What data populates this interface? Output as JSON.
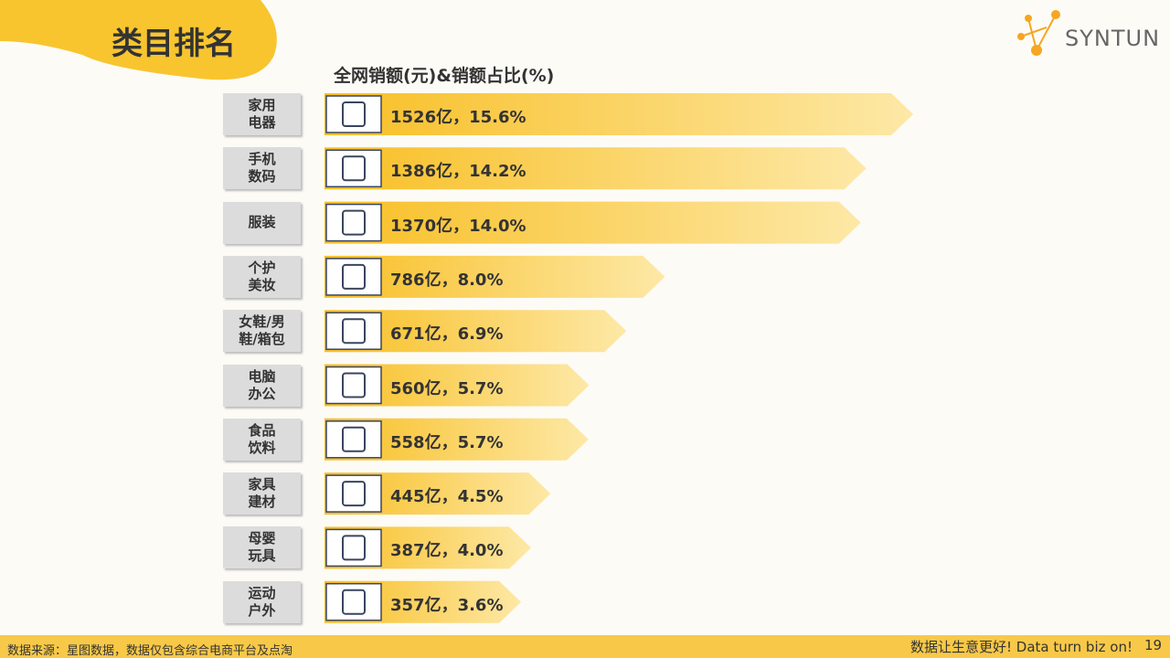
{
  "header": {
    "title": "类目排名",
    "logo": "SYNTUN"
  },
  "footer": {
    "source": "数据来源：星图数据，数据仅包含综合电商平台及点淘",
    "slogan": "数据让生意更好! Data turn biz on!",
    "page": "19"
  },
  "chart_data": {
    "type": "bar",
    "title": "全网销额(元)&销额占比(%)",
    "categories": [
      "家用\n电器",
      "手机\n数码",
      "服装",
      "个护\n美妆",
      "女鞋/男\n鞋/箱包",
      "电脑\n办公",
      "食品\n饮料",
      "家具\n建材",
      "母婴\n玩具",
      "运动\n户外"
    ],
    "values": [
      1526,
      1386,
      1370,
      786,
      671,
      560,
      558,
      445,
      387,
      357
    ],
    "shares": [
      15.6,
      14.2,
      14.0,
      8.0,
      6.9,
      5.7,
      5.7,
      4.5,
      4.0,
      3.6
    ],
    "value_labels": [
      "1526亿，15.6%",
      "1386亿，14.2%",
      "1370亿，14.0%",
      "786亿，8.0%",
      "671亿，6.9%",
      "560亿，5.7%",
      "558亿，5.7%",
      "445亿，4.5%",
      "387亿，4.0%",
      "357亿，3.6%"
    ],
    "color": "#f8bf24"
  }
}
